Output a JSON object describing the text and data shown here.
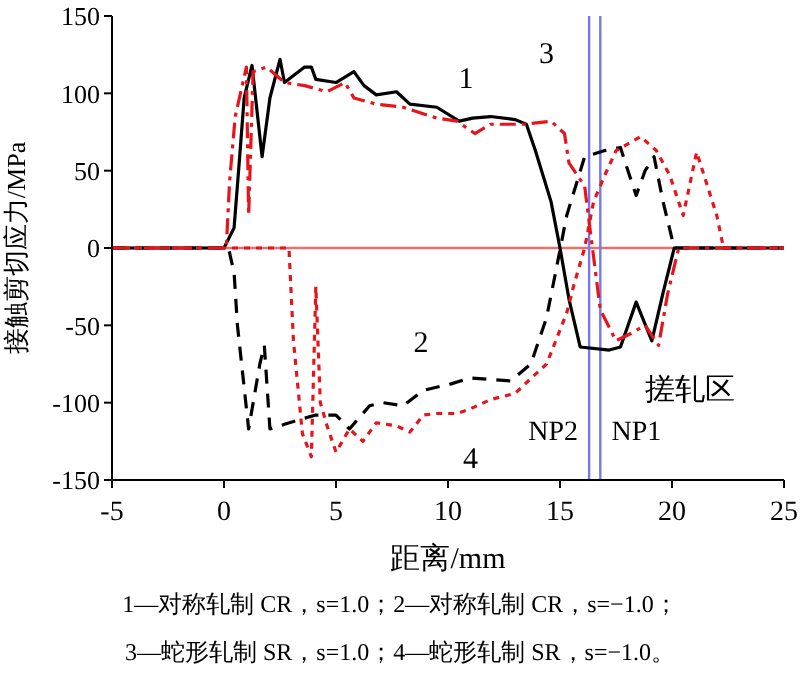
{
  "chart_data": {
    "type": "line",
    "xlabel": "距离/mm",
    "ylabel": "接触剪切应力/MPa",
    "xlim": [
      -5,
      25
    ],
    "xticks": [
      -5,
      0,
      5,
      10,
      15,
      20,
      25
    ],
    "ylim": [
      -150,
      150
    ],
    "yticks": [
      -150,
      -100,
      -50,
      0,
      50,
      100,
      150
    ],
    "series": [
      {
        "color": "#000000",
        "line_style": "solid",
        "x": [
          -5,
          0,
          0.45,
          0.7,
          0.9,
          1.25,
          1.7,
          2.05,
          2.5,
          2.7,
          3.6,
          3.9,
          4.1,
          5,
          5.8,
          6.25,
          6.8,
          7.7,
          8.3,
          9.5,
          10.5,
          11.1,
          11.9,
          13,
          13.5,
          13.9,
          14.6,
          15,
          15.4,
          15.9,
          17.2,
          17.7,
          18.4,
          19.1,
          19.6,
          20.1,
          25
        ],
        "values": [
          0,
          0,
          13,
          59,
          97,
          118,
          59,
          97,
          122,
          107,
          117,
          117,
          109,
          107,
          114,
          105,
          99,
          101,
          93,
          91,
          82,
          84,
          85,
          83,
          80,
          63,
          30,
          0,
          -33,
          -64,
          -66,
          -64,
          -35,
          -60,
          -29,
          0,
          0
        ]
      },
      {
        "color": "#000000",
        "line_style": "dashed",
        "x": [
          -5,
          0.2,
          0.45,
          0.6,
          1.1,
          1.6,
          1.8,
          2.05,
          2.7,
          3.6,
          4.1,
          5,
          5.6,
          6.5,
          7.1,
          8,
          8.9,
          10.1,
          11,
          12.8,
          13.7,
          14.4,
          14.8,
          15.3,
          16.1,
          17,
          17.7,
          18.1,
          18.4,
          18.8,
          19.2,
          19.6,
          20.1,
          25
        ],
        "values": [
          0,
          0,
          -16,
          -50,
          -117,
          -75,
          -63,
          -117,
          -114,
          -110,
          -108,
          -108,
          -117,
          -102,
          -100,
          -102,
          -92,
          -88,
          -84,
          -86,
          -75,
          -45,
          -16,
          21,
          59,
          63,
          65,
          47,
          34,
          50,
          59,
          30,
          0,
          0
        ]
      },
      {
        "color": "#e8141c",
        "line_style": "dashdot",
        "x": [
          -5,
          0.1,
          0.25,
          0.5,
          1,
          1.1,
          1.3,
          1.9,
          2.7,
          3.6,
          4.6,
          5.4,
          5.8,
          6.8,
          8,
          9.5,
          10.4,
          11.2,
          11.9,
          13.4,
          14.6,
          15.2,
          15.4,
          16.1,
          16.3,
          16.8,
          17.5,
          18.2,
          18.8,
          19.4,
          19.8,
          20.3,
          25
        ],
        "values": [
          0,
          0,
          43,
          85,
          117,
          21,
          114,
          117,
          107,
          105,
          101,
          107,
          97,
          93,
          91,
          84,
          82,
          74,
          80,
          80,
          82,
          74,
          55,
          40,
          17,
          -40,
          -60,
          -55,
          -50,
          -63,
          -30,
          0,
          0
        ]
      },
      {
        "color": "#e8141c",
        "line_style": "dotted",
        "x": [
          -5,
          2.9,
          3.1,
          3.5,
          3.9,
          4.1,
          4.3,
          4.6,
          5,
          5.6,
          6.2,
          6.8,
          7.7,
          8.3,
          8.9,
          9.5,
          10.4,
          11,
          11.9,
          13,
          13.8,
          14.4,
          15.3,
          15.6,
          16.1,
          16.5,
          17,
          17.5,
          18.6,
          19.3,
          19.9,
          20.5,
          21.1,
          22,
          22.3,
          25
        ],
        "values": [
          0,
          0,
          -60,
          -120,
          -135,
          -25,
          -100,
          -115,
          -132,
          -117,
          -125,
          -113,
          -115,
          -119,
          -108,
          -107,
          -107,
          -104,
          -98,
          -94,
          -83,
          -75,
          -42,
          -25,
          0,
          30,
          47,
          63,
          72,
          63,
          47,
          21,
          62,
          21,
          0,
          0
        ]
      }
    ],
    "ref_lines": [
      {
        "axis": "y",
        "value": 0,
        "color": "#e87070"
      },
      {
        "axis": "x",
        "value": 16.3,
        "label": "NP2",
        "color": "#7878e8"
      },
      {
        "axis": "x",
        "value": 16.8,
        "label": "NP1",
        "color": "#7878e8"
      }
    ],
    "annotations": [
      "1",
      "3",
      "2",
      "4",
      "搓轧区",
      "1—对称轧制 CR，s=1.0；2—对称轧制 CR，s=−1.0；",
      "3—蛇形轧制 SR，s=1.0；4—蛇形轧制 SR，s=−1.0。"
    ]
  }
}
